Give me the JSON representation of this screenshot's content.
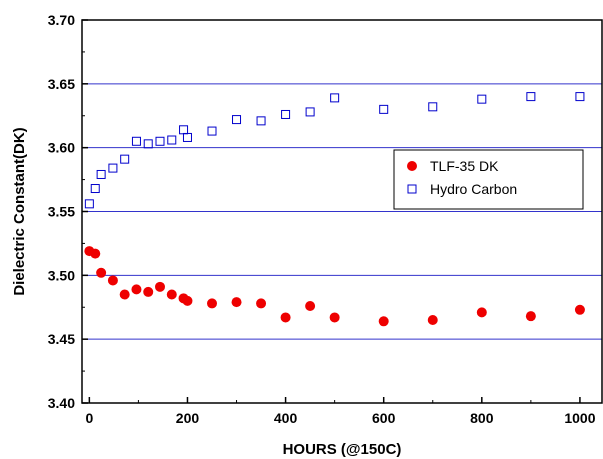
{
  "chart_data": {
    "type": "scatter",
    "title": "",
    "xlabel": "HOURS (@150C)",
    "ylabel": "Dielectric Constant(DK)",
    "xlim": [
      -15,
      1045
    ],
    "ylim": [
      3.4,
      3.7
    ],
    "xticks": [
      0,
      200,
      400,
      600,
      800,
      1000
    ],
    "xtick_labels": [
      "0",
      "200",
      "400",
      "600",
      "800",
      "1000"
    ],
    "yticks": [
      3.4,
      3.45,
      3.5,
      3.55,
      3.6,
      3.65,
      3.7
    ],
    "ytick_labels": [
      "3.40",
      "3.45",
      "3.50",
      "3.55",
      "3.60",
      "3.65",
      "3.70"
    ],
    "gridlines_y": [
      3.45,
      3.5,
      3.55,
      3.6,
      3.65
    ],
    "grid_color": "#3333cc",
    "legend_position": "right",
    "series": [
      {
        "name": "TLF-35 DK",
        "marker": "filled-circle",
        "color": "#ee0000",
        "x": [
          0,
          12,
          24,
          48,
          72,
          96,
          120,
          144,
          168,
          192,
          200,
          250,
          300,
          350,
          400,
          450,
          500,
          600,
          700,
          800,
          900,
          1000
        ],
        "y": [
          3.519,
          3.517,
          3.502,
          3.496,
          3.485,
          3.489,
          3.487,
          3.491,
          3.485,
          3.482,
          3.48,
          3.478,
          3.479,
          3.478,
          3.467,
          3.476,
          3.467,
          3.464,
          3.465,
          3.471,
          3.468,
          3.473
        ]
      },
      {
        "name": "Hydro Carbon",
        "marker": "open-square",
        "color": "#0000cc",
        "x": [
          0,
          12,
          24,
          48,
          72,
          96,
          120,
          144,
          168,
          192,
          200,
          250,
          300,
          350,
          400,
          450,
          500,
          600,
          700,
          800,
          900,
          1000
        ],
        "y": [
          3.556,
          3.568,
          3.579,
          3.584,
          3.591,
          3.605,
          3.603,
          3.605,
          3.606,
          3.614,
          3.608,
          3.613,
          3.622,
          3.621,
          3.626,
          3.628,
          3.639,
          3.63,
          3.632,
          3.638,
          3.64,
          3.64
        ]
      }
    ]
  }
}
